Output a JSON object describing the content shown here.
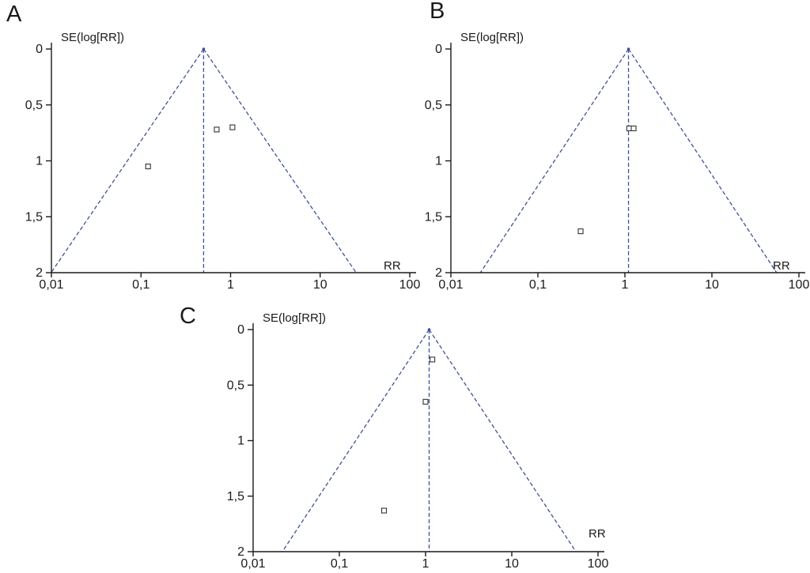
{
  "figure": {
    "background": "#ffffff",
    "panel_labels": [
      "A",
      "B",
      "C"
    ]
  },
  "chart_data": [
    {
      "type": "scatter",
      "subtype": "funnel-plot",
      "panel_label": "A",
      "title": "",
      "xlabel": "RR",
      "ylabel": "SE(log[RR])",
      "x_scale": "log10",
      "xlim": [
        0.01,
        100
      ],
      "ylim": [
        0,
        2
      ],
      "y_inverted": true,
      "grid": false,
      "x_tick_values": [
        0.01,
        0.1,
        1,
        10,
        100
      ],
      "x_tick_labels": [
        "0,01",
        "0,1",
        "1",
        "10",
        "100"
      ],
      "y_tick_values": [
        0,
        0.5,
        1,
        1.5,
        2
      ],
      "y_tick_labels": [
        "0",
        "0,5",
        "1",
        "1,5",
        "2"
      ],
      "pooled_rr": 0.5,
      "funnel_z": 1.96,
      "points": [
        {
          "rr": 0.7,
          "se": 0.72
        },
        {
          "rr": 1.05,
          "se": 0.7
        },
        {
          "rr": 0.12,
          "se": 1.05
        }
      ],
      "colors": {
        "axis": "#1a1a1a",
        "funnel": "#40509e",
        "marker": "#333333"
      }
    },
    {
      "type": "scatter",
      "subtype": "funnel-plot",
      "panel_label": "B",
      "title": "",
      "xlabel": "RR",
      "ylabel": "SE(log[RR])",
      "x_scale": "log10",
      "xlim": [
        0.01,
        100
      ],
      "ylim": [
        0,
        2
      ],
      "y_inverted": true,
      "grid": false,
      "x_tick_values": [
        0.01,
        0.1,
        1,
        10,
        100
      ],
      "x_tick_labels": [
        "0,01",
        "0,1",
        "1",
        "10",
        "100"
      ],
      "y_tick_values": [
        0,
        0.5,
        1,
        1.5,
        2
      ],
      "y_tick_labels": [
        "0",
        "0,5",
        "1",
        "1,5",
        "2"
      ],
      "pooled_rr": 1.1,
      "funnel_z": 1.96,
      "points": [
        {
          "rr": 1.12,
          "se": 0.71
        },
        {
          "rr": 1.26,
          "se": 0.71
        },
        {
          "rr": 0.31,
          "se": 1.63
        }
      ],
      "colors": {
        "axis": "#1a1a1a",
        "funnel": "#40509e",
        "marker": "#333333"
      }
    },
    {
      "type": "scatter",
      "subtype": "funnel-plot",
      "panel_label": "C",
      "title": "",
      "xlabel": "RR",
      "ylabel": "SE(log[RR])",
      "x_scale": "log10",
      "xlim": [
        0.01,
        100
      ],
      "ylim": [
        0,
        2
      ],
      "y_inverted": true,
      "grid": false,
      "x_tick_values": [
        0.01,
        0.1,
        1,
        10,
        100
      ],
      "x_tick_labels": [
        "0,01",
        "0,1",
        "1",
        "10",
        "100"
      ],
      "y_tick_values": [
        0,
        0.5,
        1,
        1.5,
        2
      ],
      "y_tick_labels": [
        "0",
        "0,5",
        "1",
        "1,5",
        "2"
      ],
      "pooled_rr": 1.1,
      "funnel_z": 1.96,
      "points": [
        {
          "rr": 1.2,
          "se": 0.27
        },
        {
          "rr": 1.0,
          "se": 0.65
        },
        {
          "rr": 0.33,
          "se": 1.63
        }
      ],
      "colors": {
        "axis": "#1a1a1a",
        "funnel": "#40509e",
        "marker": "#333333"
      }
    }
  ]
}
